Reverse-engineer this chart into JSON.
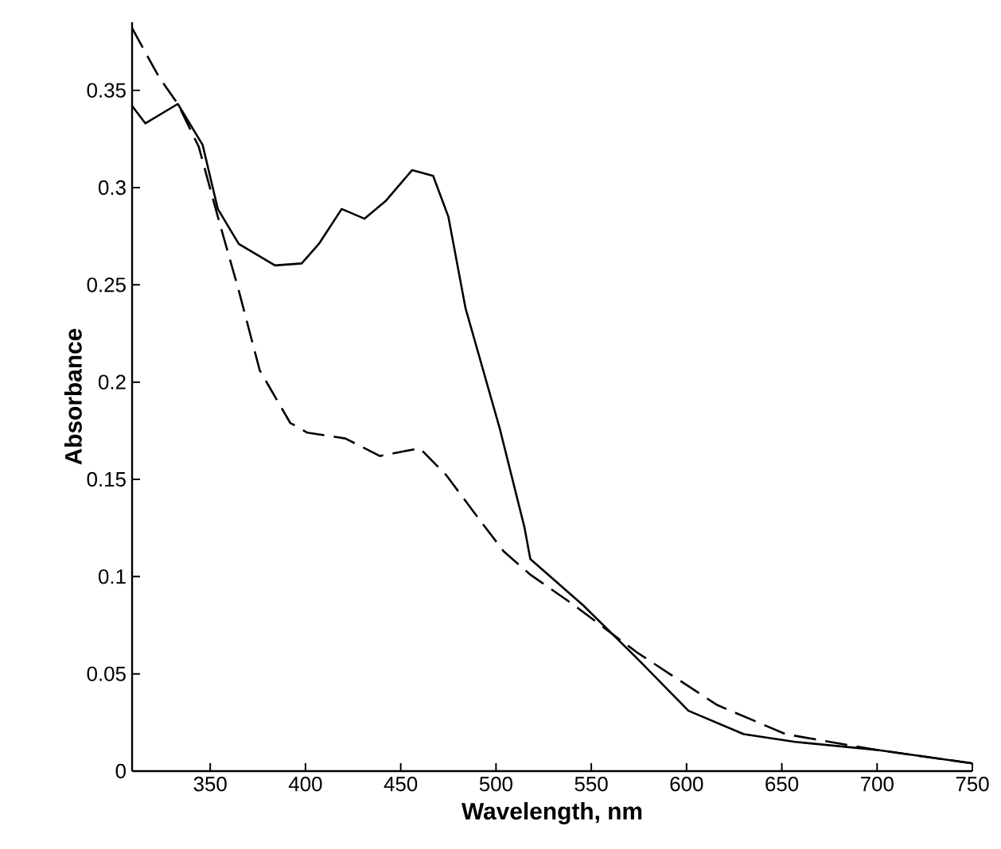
{
  "chart_data": {
    "type": "line",
    "xlabel": "Wavelength, nm",
    "ylabel": "Absorbance",
    "xlim": [
      309,
      750
    ],
    "ylim": [
      0,
      0.385
    ],
    "xticks": [
      350,
      400,
      450,
      500,
      550,
      600,
      650,
      700,
      750
    ],
    "yticks": [
      0,
      0.05,
      0.1,
      0.15,
      0.2,
      0.25,
      0.3,
      0.35
    ],
    "marker": "none",
    "series": [
      {
        "color": "#000000",
        "line_style": "solid",
        "x": [
          309,
          316,
          333,
          346,
          354,
          365,
          384,
          398,
          407,
          419,
          431,
          442,
          456,
          467,
          475,
          484,
          502,
          515,
          518,
          546,
          574,
          601,
          630,
          657,
          699,
          750
        ],
        "values": [
          0.342,
          0.333,
          0.343,
          0.322,
          0.289,
          0.271,
          0.26,
          0.261,
          0.271,
          0.289,
          0.284,
          0.293,
          0.309,
          0.306,
          0.285,
          0.238,
          0.176,
          0.125,
          0.109,
          0.085,
          0.058,
          0.031,
          0.019,
          0.015,
          0.011,
          0.004
        ]
      },
      {
        "color": "#000000",
        "line_style": "dashed",
        "x": [
          309,
          323,
          333,
          344,
          354,
          365,
          376,
          392,
          401,
          421,
          439,
          460,
          474,
          490,
          504,
          518,
          540,
          574,
          616,
          652,
          699,
          750
        ],
        "values": [
          0.382,
          0.357,
          0.343,
          0.321,
          0.285,
          0.247,
          0.206,
          0.179,
          0.174,
          0.171,
          0.162,
          0.166,
          0.152,
          0.131,
          0.113,
          0.101,
          0.086,
          0.061,
          0.034,
          0.019,
          0.011,
          0.004
        ]
      }
    ]
  }
}
